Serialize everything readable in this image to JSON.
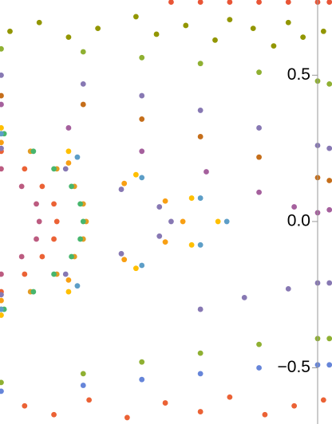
{
  "chart_data": {
    "type": "scatter",
    "xlim": [
      -1.084,
      0.049
    ],
    "ylim": [
      -0.692,
      0.757
    ],
    "yticks": [
      {
        "value": -0.5,
        "label": "−0.5"
      },
      {
        "value": 0,
        "label": "0.0"
      },
      0.5
    ],
    "series": [
      {
        "color": "#eb6235",
        "x": [
          -1.08,
          -1.0,
          -0.94,
          -0.9,
          -0.89,
          -0.9,
          -0.94,
          -1.0,
          -1.08
        ],
        "y": [
          0.24,
          0.18,
          0.12,
          0.06,
          0,
          -0.06,
          -0.12,
          -0.18,
          -0.24
        ]
      },
      {
        "color": "#bc5b80",
        "x": [
          -1.08,
          -1.01,
          -0.96,
          -0.95,
          -0.96,
          -1.01,
          -1.08
        ],
        "y": [
          0.18,
          0.12,
          0.06,
          0,
          -0.06,
          -0.12,
          -0.18
        ]
      },
      {
        "color": "#e19c24",
        "x": [
          -1.08,
          -0.98,
          -0.89,
          -0.83,
          -0.8,
          -0.79,
          -0.8,
          -0.83,
          -0.89,
          -0.98,
          -1.08
        ],
        "y": [
          0.3,
          0.24,
          0.18,
          0.12,
          0.06,
          0,
          -0.06,
          -0.12,
          -0.18,
          -0.24,
          -0.3
        ]
      },
      {
        "color": "#47b66d",
        "x": [
          -1.07,
          -0.97,
          -0.9,
          -0.84,
          -0.81,
          -0.8,
          -0.81,
          -0.84,
          -0.9,
          -0.97,
          -1.07
        ],
        "y": [
          0.3,
          0.24,
          0.18,
          0.12,
          0.06,
          0,
          -0.06,
          -0.12,
          -0.18,
          -0.24,
          -0.3
        ]
      },
      {
        "color": "#8778b3",
        "x": [
          -1.08,
          -0.86,
          -0.67,
          -0.54,
          -0.5,
          -0.54,
          -0.67,
          -0.86,
          -1.08
        ],
        "y": [
          0.25,
          0.18,
          0.11,
          0.05,
          0,
          -0.05,
          -0.11,
          -0.18,
          -0.25
        ]
      },
      {
        "color": "#f89f13",
        "x": [
          -1.08,
          -0.85,
          -0.66,
          -0.52,
          -0.46,
          -0.52,
          -0.66,
          -0.85,
          -1.08
        ],
        "y": [
          0.27,
          0.2,
          0.13,
          0.07,
          0,
          -0.07,
          -0.13,
          -0.2,
          -0.27
        ]
      },
      {
        "color": "#ffbf00",
        "x": [
          -1.08,
          -0.85,
          -0.62,
          -0.43,
          -0.34,
          -0.43,
          -0.62,
          -0.85,
          -1.08
        ],
        "y": [
          0.32,
          0.24,
          0.16,
          0.08,
          0,
          -0.08,
          -0.16,
          -0.24,
          -0.32
        ]
      },
      {
        "color": "#5d9ec7",
        "x": [
          -1.08,
          -0.82,
          -0.6,
          -0.4,
          -0.31,
          -0.4,
          -0.6,
          -0.82,
          -1.08
        ],
        "y": [
          0.3,
          0.22,
          0.15,
          0.08,
          0,
          -0.08,
          -0.15,
          -0.22,
          -0.3
        ]
      },
      {
        "color": "#a5609d",
        "x": [
          -1.08,
          -0.85,
          -0.6,
          -0.38,
          -0.2,
          -0.08,
          0,
          0.04
        ],
        "y": [
          0.4,
          0.32,
          0.24,
          0.17,
          0.1,
          0.05,
          0.03,
          0.04
        ]
      },
      {
        "color": "#8778b3",
        "x": [
          -0.4,
          -0.25,
          -0.1,
          0,
          0.04
        ],
        "y": [
          -0.3,
          -0.26,
          -0.23,
          -0.21,
          -0.21
        ]
      },
      {
        "color": "#8fb032",
        "x": [
          -1.08,
          -0.8,
          -0.6,
          -0.4,
          -0.2,
          0,
          0.04
        ],
        "y": [
          0.59,
          0.58,
          0.56,
          0.54,
          0.51,
          0.48,
          0.47
        ]
      },
      {
        "color": "#8778b3",
        "x": [
          -1.08,
          -0.8,
          -0.6,
          -0.4,
          -0.2,
          0,
          0.04
        ],
        "y": [
          0.5,
          0.47,
          0.43,
          0.38,
          0.32,
          0.26,
          0.25
        ]
      },
      {
        "color": "#c56e1a",
        "x": [
          -1.08,
          -0.8,
          -0.6,
          -0.4,
          -0.2,
          0,
          0.04
        ],
        "y": [
          0.43,
          0.4,
          0.35,
          0.29,
          0.22,
          0.15,
          0.14
        ]
      },
      {
        "color": "#929600",
        "x": [
          -1.05,
          -0.95,
          -0.85,
          -0.75,
          -0.62,
          -0.55,
          -0.45,
          -0.35,
          -0.3,
          -0.22,
          -0.15,
          -0.1,
          -0.05,
          0.02
        ],
        "y": [
          0.65,
          0.68,
          0.63,
          0.66,
          0.7,
          0.64,
          0.67,
          0.62,
          0.69,
          0.66,
          0.6,
          0.68,
          0.63,
          0.65
        ]
      },
      {
        "color": "#e95536",
        "x": [
          -0.5,
          -0.4,
          -0.3,
          -0.2,
          -0.1,
          0,
          0.04
        ],
        "y": [
          0.75,
          0.75,
          0.75,
          0.75,
          0.75,
          0.75,
          0.75
        ]
      },
      {
        "color": "#8fb032",
        "x": [
          -1.08,
          -0.8,
          -0.6,
          -0.4,
          -0.2,
          0,
          0.04
        ],
        "y": [
          -0.55,
          -0.52,
          -0.48,
          -0.45,
          -0.42,
          -0.4,
          -0.4
        ]
      },
      {
        "color": "#6685d9",
        "x": [
          -1.08,
          -0.8,
          -0.6,
          -0.4,
          -0.2,
          0,
          0.04
        ],
        "y": [
          -0.58,
          -0.56,
          -0.54,
          -0.52,
          -0.5,
          -0.49,
          -0.49
        ]
      },
      {
        "color": "#eb6235",
        "x": [
          -1.0,
          -0.9,
          -0.78,
          -0.65,
          -0.52,
          -0.4,
          -0.3,
          -0.18,
          -0.08,
          0.02
        ],
        "y": [
          -0.63,
          -0.66,
          -0.61,
          -0.67,
          -0.62,
          -0.65,
          -0.6,
          -0.66,
          -0.63,
          -0.61
        ]
      }
    ]
  }
}
